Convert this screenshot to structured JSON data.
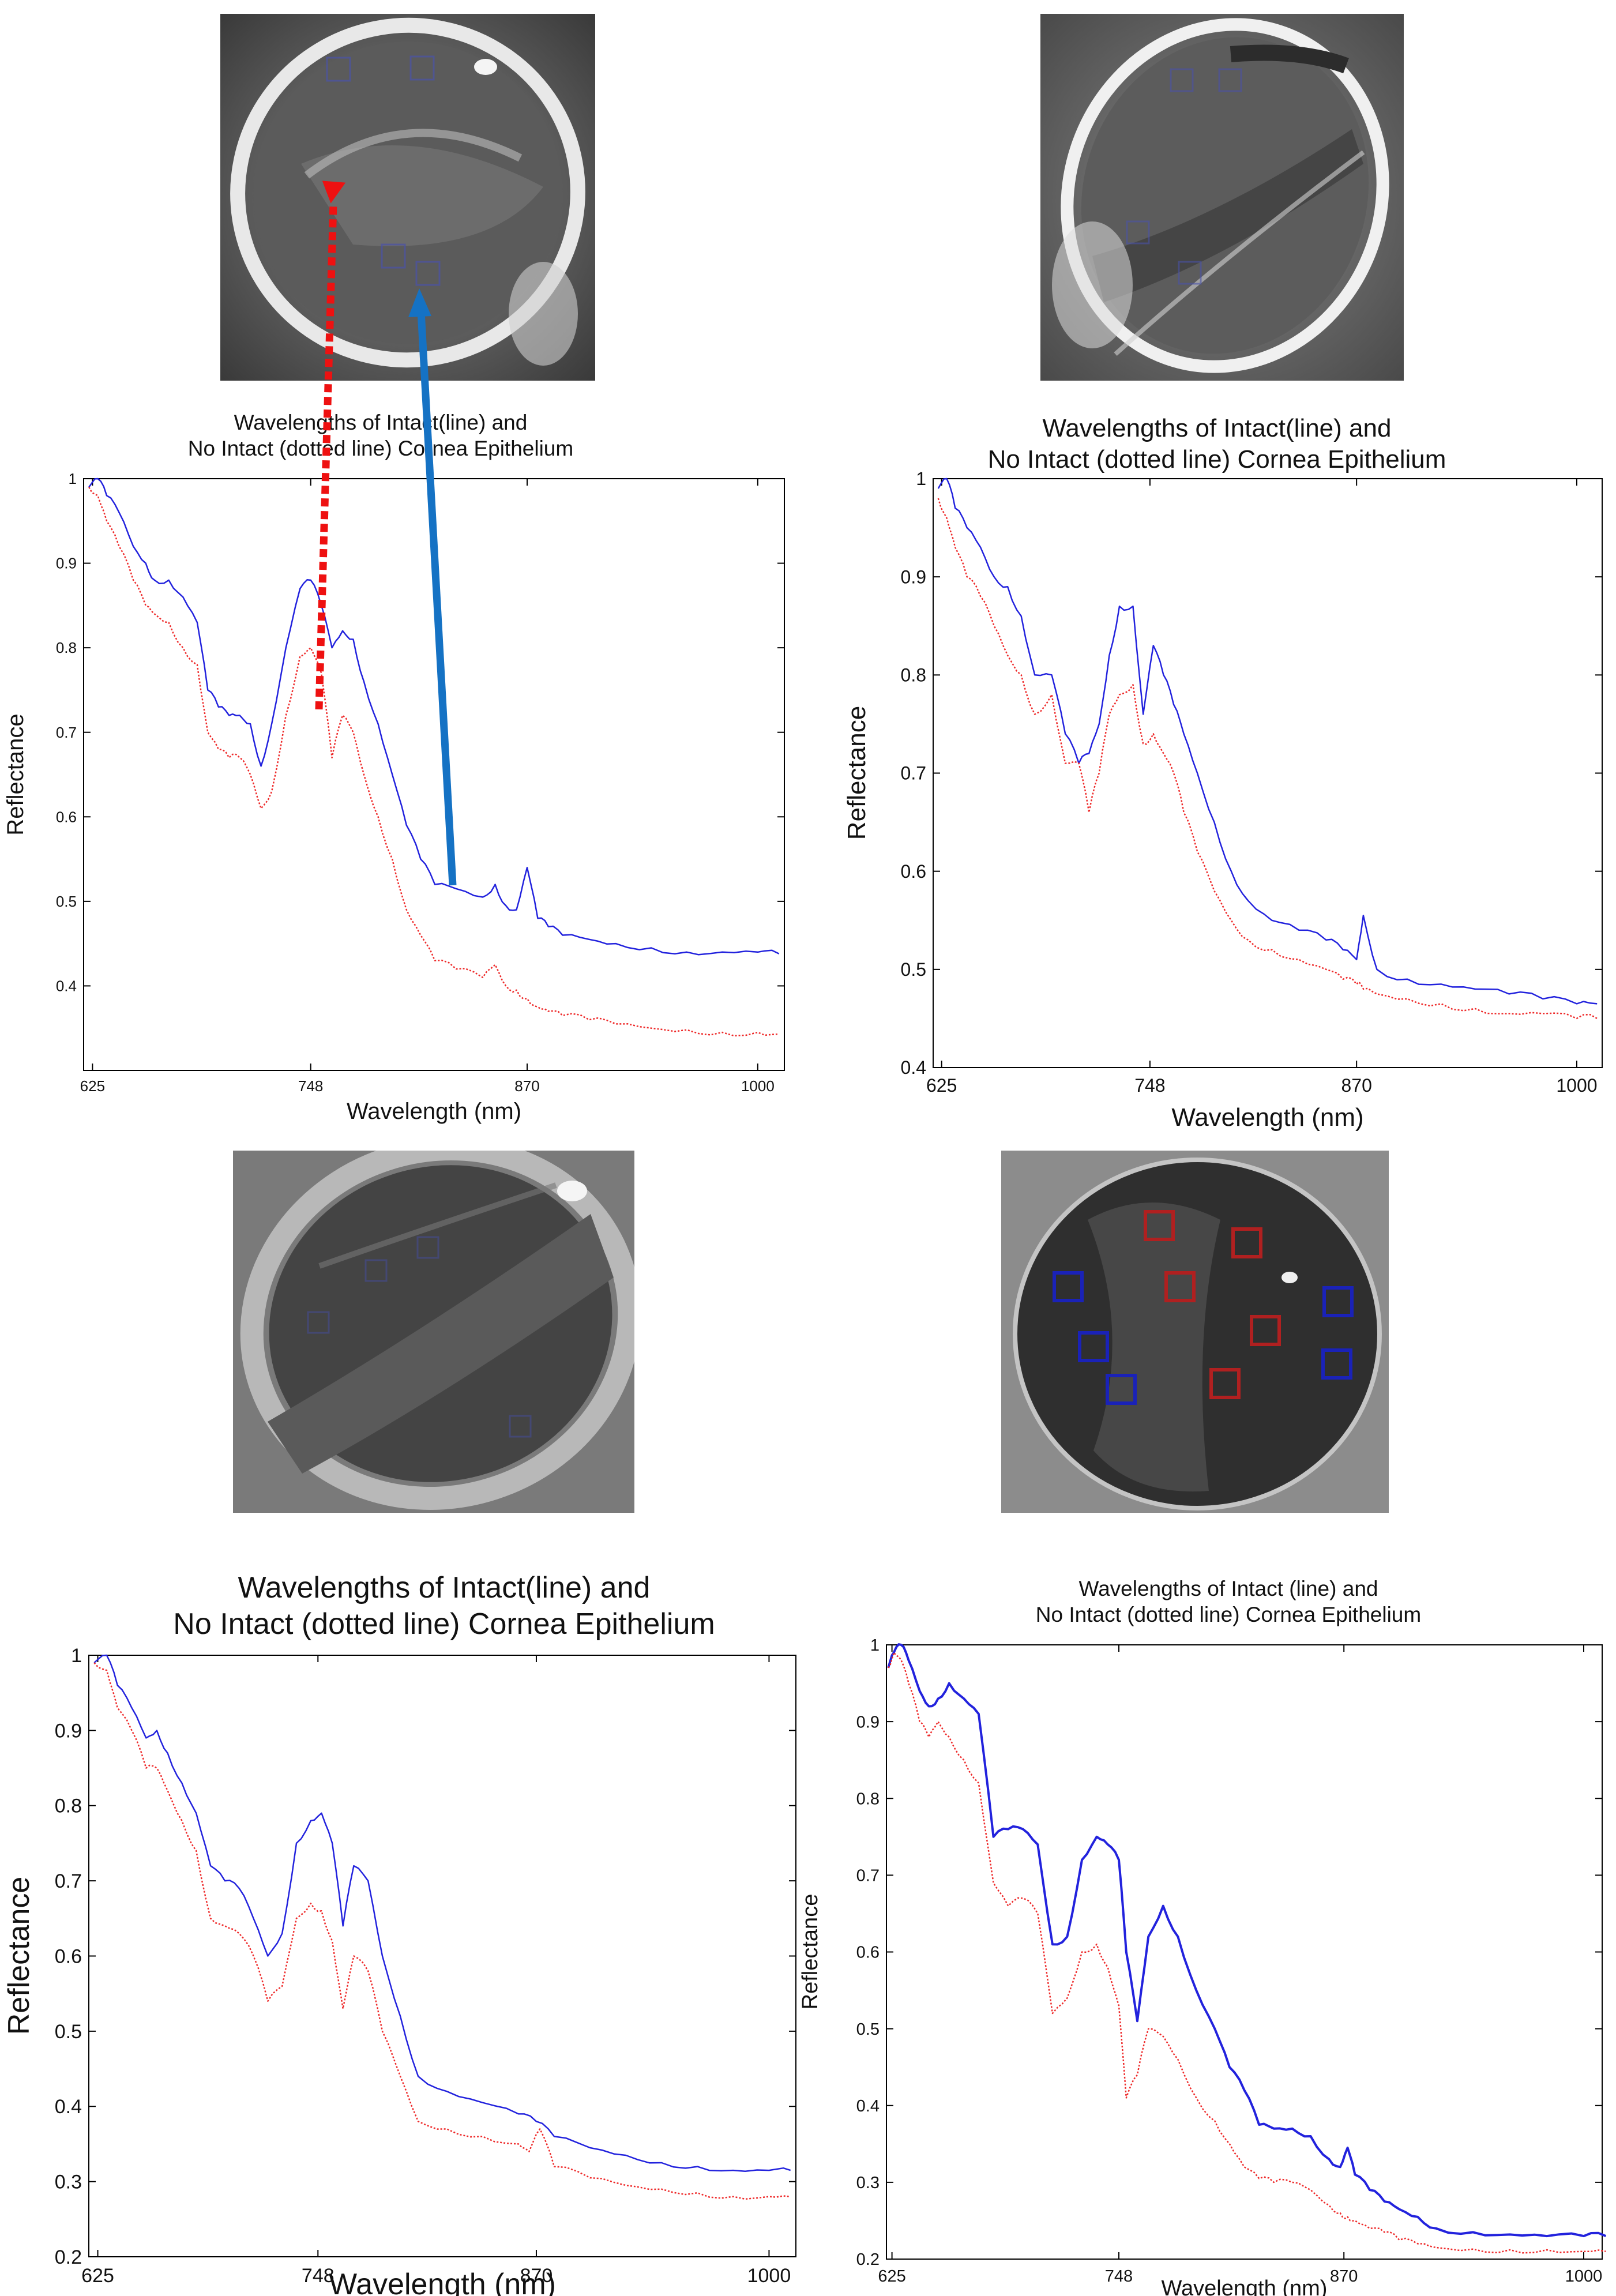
{
  "figure": {
    "series_legend": {
      "intact": "Intact (solid line)",
      "non_intact": "No Intact (dotted line)"
    },
    "colors": {
      "intact": "#2222dd",
      "non_intact": "#ee2a2a",
      "roi_intact": "#1a22b8",
      "roi_non_intact": "#b02020",
      "arrow_red": "#ee1111",
      "arrow_blue": "#1572c4"
    }
  },
  "photos": [
    {
      "panel": "top-left",
      "name": "cornea-image-1",
      "roi_boxes": [
        "blue",
        "blue",
        "blue",
        "blue"
      ]
    },
    {
      "panel": "top-right",
      "name": "cornea-image-2",
      "roi_boxes": [
        "blue",
        "blue",
        "blue",
        "blue"
      ]
    },
    {
      "panel": "bottom-left",
      "name": "cornea-image-3",
      "roi_boxes": [
        "blue",
        "blue",
        "blue",
        "blue"
      ]
    },
    {
      "panel": "bottom-right",
      "name": "cornea-image-4",
      "roi_boxes": [
        "red",
        "red",
        "red",
        "red",
        "red",
        "blue",
        "blue",
        "blue",
        "blue",
        "blue"
      ]
    }
  ],
  "chart_data": [
    {
      "panel": "top-left",
      "type": "line",
      "title_line1": "Wavelengths of Intact(line) and",
      "title_line2": "No Intact (dotted line) Cornea Epithelium",
      "xlabel": "Wavelength (nm)",
      "ylabel": "Reflectance",
      "xlim": [
        620,
        1015
      ],
      "ylim": [
        0.3,
        1.0
      ],
      "xticks": [
        625,
        748,
        870,
        1000
      ],
      "yticks": [
        0.4,
        0.5,
        0.6,
        0.7,
        0.8,
        0.9,
        1
      ],
      "grid": false,
      "series": [
        {
          "name": "Intact",
          "style": "solid",
          "x": [
            623,
            628,
            633,
            640,
            648,
            655,
            660,
            668,
            676,
            684,
            690,
            696,
            702,
            708,
            714,
            720,
            726,
            734,
            742,
            748,
            754,
            760,
            766,
            772,
            778,
            786,
            794,
            802,
            810,
            818,
            830,
            845,
            852,
            858,
            864,
            870,
            876,
            882,
            890,
            905,
            920,
            940,
            960,
            980,
            1000,
            1012
          ],
          "y": [
            0.99,
            1.0,
            0.98,
            0.96,
            0.92,
            0.9,
            0.88,
            0.88,
            0.86,
            0.83,
            0.75,
            0.73,
            0.72,
            0.72,
            0.71,
            0.66,
            0.71,
            0.8,
            0.87,
            0.88,
            0.85,
            0.8,
            0.82,
            0.81,
            0.76,
            0.71,
            0.65,
            0.59,
            0.55,
            0.52,
            0.515,
            0.505,
            0.52,
            0.495,
            0.49,
            0.54,
            0.48,
            0.47,
            0.46,
            0.455,
            0.45,
            0.445,
            0.44,
            0.44,
            0.44,
            0.438
          ]
        },
        {
          "name": "No Intact",
          "style": "dotted",
          "x": [
            623,
            628,
            633,
            640,
            648,
            655,
            660,
            668,
            676,
            684,
            690,
            696,
            702,
            708,
            714,
            720,
            726,
            734,
            742,
            748,
            754,
            760,
            766,
            772,
            778,
            786,
            794,
            802,
            810,
            818,
            830,
            845,
            852,
            858,
            864,
            870,
            876,
            882,
            890,
            905,
            920,
            940,
            960,
            980,
            1000,
            1012
          ],
          "y": [
            0.99,
            0.98,
            0.95,
            0.92,
            0.88,
            0.85,
            0.84,
            0.83,
            0.8,
            0.78,
            0.7,
            0.68,
            0.67,
            0.67,
            0.65,
            0.61,
            0.63,
            0.72,
            0.79,
            0.8,
            0.77,
            0.67,
            0.72,
            0.7,
            0.65,
            0.6,
            0.55,
            0.49,
            0.46,
            0.43,
            0.42,
            0.41,
            0.425,
            0.4,
            0.395,
            0.385,
            0.375,
            0.37,
            0.365,
            0.36,
            0.355,
            0.35,
            0.348,
            0.345,
            0.345,
            0.343
          ]
        }
      ]
    },
    {
      "panel": "top-right",
      "type": "line",
      "title_line1": "Wavelengths of Intact(line) and",
      "title_line2": "No Intact (dotted line) Cornea Epithelium",
      "xlabel": "Wavelength (nm)",
      "ylabel": "Reflectance",
      "xlim": [
        620,
        1015
      ],
      "ylim": [
        0.4,
        1.0
      ],
      "xticks": [
        625,
        748,
        870,
        1000
      ],
      "yticks": [
        0.4,
        0.5,
        0.6,
        0.7,
        0.8,
        0.9,
        1
      ],
      "grid": false,
      "series": [
        {
          "name": "Intact",
          "style": "solid",
          "x": [
            623,
            628,
            633,
            640,
            648,
            656,
            664,
            672,
            680,
            690,
            698,
            706,
            712,
            718,
            724,
            730,
            738,
            744,
            750,
            756,
            762,
            768,
            776,
            786,
            796,
            806,
            820,
            836,
            852,
            862,
            870,
            874,
            882,
            900,
            920,
            940,
            960,
            980,
            1000,
            1012
          ],
          "y": [
            0.99,
            1.0,
            0.97,
            0.95,
            0.93,
            0.9,
            0.89,
            0.86,
            0.8,
            0.8,
            0.74,
            0.71,
            0.72,
            0.75,
            0.82,
            0.87,
            0.87,
            0.76,
            0.83,
            0.8,
            0.77,
            0.74,
            0.7,
            0.65,
            0.6,
            0.57,
            0.55,
            0.54,
            0.53,
            0.52,
            0.51,
            0.555,
            0.5,
            0.49,
            0.485,
            0.48,
            0.475,
            0.47,
            0.465,
            0.465
          ]
        },
        {
          "name": "No Intact",
          "style": "dotted",
          "x": [
            623,
            628,
            633,
            640,
            648,
            656,
            664,
            672,
            680,
            690,
            698,
            706,
            712,
            718,
            724,
            730,
            738,
            744,
            750,
            756,
            762,
            768,
            776,
            786,
            796,
            806,
            820,
            836,
            852,
            862,
            870,
            874,
            882,
            900,
            920,
            940,
            960,
            980,
            1000,
            1012
          ],
          "y": [
            0.98,
            0.96,
            0.93,
            0.9,
            0.88,
            0.85,
            0.82,
            0.8,
            0.76,
            0.78,
            0.71,
            0.71,
            0.66,
            0.7,
            0.76,
            0.78,
            0.79,
            0.73,
            0.74,
            0.72,
            0.7,
            0.66,
            0.62,
            0.58,
            0.55,
            0.53,
            0.52,
            0.51,
            0.5,
            0.49,
            0.485,
            0.48,
            0.475,
            0.47,
            0.465,
            0.46,
            0.455,
            0.455,
            0.45,
            0.45
          ]
        }
      ]
    },
    {
      "panel": "bottom-left",
      "type": "line",
      "title_line1": "Wavelengths of Intact(line) and",
      "title_line2": "No Intact (dotted line) Cornea Epithelium",
      "xlabel": "Wavelength (nm)",
      "ylabel": "Reflectance",
      "xlim": [
        620,
        1015
      ],
      "ylim": [
        0.2,
        1.0
      ],
      "xticks": [
        625,
        748,
        870,
        1000
      ],
      "yticks": [
        0.2,
        0.3,
        0.4,
        0.5,
        0.6,
        0.7,
        0.8,
        0.9,
        1
      ],
      "grid": false,
      "series": [
        {
          "name": "Intact",
          "style": "solid",
          "x": [
            623,
            630,
            636,
            644,
            652,
            658,
            664,
            672,
            680,
            688,
            696,
            704,
            712,
            720,
            728,
            736,
            744,
            750,
            756,
            762,
            768,
            776,
            784,
            794,
            804,
            820,
            840,
            860,
            870,
            880,
            900,
            920,
            940,
            960,
            980,
            1000,
            1012
          ],
          "y": [
            0.99,
            1.0,
            0.96,
            0.93,
            0.89,
            0.9,
            0.87,
            0.83,
            0.79,
            0.72,
            0.7,
            0.69,
            0.65,
            0.6,
            0.63,
            0.75,
            0.78,
            0.79,
            0.75,
            0.64,
            0.72,
            0.7,
            0.6,
            0.52,
            0.44,
            0.42,
            0.405,
            0.39,
            0.38,
            0.36,
            0.345,
            0.335,
            0.325,
            0.32,
            0.315,
            0.315,
            0.315
          ]
        },
        {
          "name": "No Intact",
          "style": "dotted",
          "x": [
            623,
            630,
            636,
            644,
            652,
            658,
            664,
            672,
            680,
            688,
            696,
            704,
            712,
            720,
            728,
            736,
            744,
            750,
            756,
            762,
            768,
            776,
            784,
            794,
            804,
            820,
            840,
            860,
            866,
            872,
            880,
            900,
            920,
            940,
            960,
            980,
            1000,
            1012
          ],
          "y": [
            0.99,
            0.98,
            0.93,
            0.9,
            0.85,
            0.85,
            0.82,
            0.78,
            0.74,
            0.65,
            0.64,
            0.63,
            0.6,
            0.54,
            0.56,
            0.65,
            0.67,
            0.66,
            0.62,
            0.53,
            0.6,
            0.58,
            0.5,
            0.44,
            0.38,
            0.37,
            0.36,
            0.35,
            0.34,
            0.37,
            0.32,
            0.305,
            0.295,
            0.29,
            0.285,
            0.28,
            0.28,
            0.28
          ]
        }
      ]
    },
    {
      "panel": "bottom-right",
      "type": "line",
      "title_line1": "Wavelengths of Intact (line) and",
      "title_line2": "No Intact (dotted line) Cornea Epithelium",
      "xlabel": "Wavelength (nm)",
      "ylabel": "Reflectance",
      "xlim": [
        622,
        1010
      ],
      "ylim": [
        0.2,
        1.0
      ],
      "xticks": [
        625,
        748,
        870,
        1000
      ],
      "yticks": [
        0.2,
        0.3,
        0.4,
        0.5,
        0.6,
        0.7,
        0.8,
        0.9,
        1
      ],
      "grid": false,
      "series": [
        {
          "name": "Intact",
          "style": "solid",
          "x": [
            623,
            626,
            630,
            634,
            640,
            645,
            650,
            656,
            664,
            672,
            680,
            688,
            696,
            704,
            712,
            720,
            728,
            736,
            742,
            748,
            752,
            758,
            764,
            772,
            780,
            790,
            800,
            808,
            816,
            824,
            832,
            842,
            852,
            862,
            868,
            872,
            876,
            884,
            892,
            900,
            910,
            920,
            940,
            960,
            980,
            1000,
            1012
          ],
          "y": [
            0.97,
            0.99,
            1.0,
            0.98,
            0.94,
            0.92,
            0.93,
            0.95,
            0.93,
            0.91,
            0.75,
            0.76,
            0.76,
            0.74,
            0.61,
            0.62,
            0.72,
            0.75,
            0.74,
            0.72,
            0.6,
            0.51,
            0.62,
            0.66,
            0.62,
            0.55,
            0.5,
            0.45,
            0.42,
            0.375,
            0.37,
            0.37,
            0.36,
            0.33,
            0.32,
            0.345,
            0.31,
            0.29,
            0.275,
            0.265,
            0.255,
            0.24,
            0.235,
            0.232,
            0.23,
            0.23,
            0.23
          ]
        },
        {
          "name": "No Intact",
          "style": "dotted",
          "x": [
            623,
            626,
            630,
            634,
            640,
            645,
            650,
            656,
            664,
            672,
            680,
            688,
            696,
            704,
            712,
            720,
            728,
            736,
            742,
            748,
            752,
            758,
            764,
            772,
            780,
            790,
            800,
            808,
            816,
            824,
            832,
            842,
            852,
            862,
            868,
            872,
            876,
            884,
            892,
            900,
            910,
            920,
            940,
            960,
            980,
            1000,
            1012
          ],
          "y": [
            0.97,
            0.99,
            0.98,
            0.95,
            0.9,
            0.88,
            0.9,
            0.88,
            0.85,
            0.82,
            0.69,
            0.66,
            0.67,
            0.65,
            0.52,
            0.54,
            0.6,
            0.61,
            0.58,
            0.53,
            0.41,
            0.44,
            0.5,
            0.49,
            0.46,
            0.41,
            0.38,
            0.35,
            0.32,
            0.305,
            0.3,
            0.3,
            0.29,
            0.27,
            0.26,
            0.255,
            0.25,
            0.24,
            0.235,
            0.225,
            0.22,
            0.215,
            0.213,
            0.212,
            0.212,
            0.21,
            0.21
          ]
        }
      ]
    }
  ]
}
